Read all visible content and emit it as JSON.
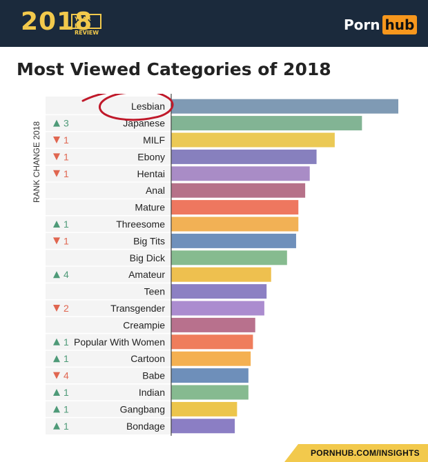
{
  "header": {
    "year": "2018",
    "year_in_review": "YEAR IN REVIEW",
    "brand_part1": "Porn",
    "brand_part2": "hub"
  },
  "footer": {
    "url": "PORNHUB.COM/INSIGHTS"
  },
  "colors": {
    "header_bg": "#1b2a3c",
    "gold": "#f2c94c",
    "brand_orange": "#f7971d",
    "up_arrow": "#4e9a78",
    "down_arrow": "#e06650",
    "annotation_circle": "#c0192a"
  },
  "chart_data": {
    "type": "bar",
    "orientation": "horizontal",
    "title": "Most Viewed Categories of 2018",
    "side_label": "RANK CHANGE 2018",
    "categories": [
      "Lesbian",
      "Japanese",
      "MILF",
      "Ebony",
      "Hentai",
      "Anal",
      "Mature",
      "Threesome",
      "Big Tits",
      "Big Dick",
      "Amateur",
      "Teen",
      "Transgender",
      "Creampie",
      "Popular With Women",
      "Cartoon",
      "Babe",
      "Indian",
      "Gangbang",
      "Bondage"
    ],
    "values": [
      100,
      84,
      72,
      64,
      61,
      59,
      56,
      56,
      55,
      51,
      44,
      42,
      41,
      37,
      36,
      35,
      34,
      34,
      29,
      28
    ],
    "rank_change": [
      {
        "dir": "",
        "n": ""
      },
      {
        "dir": "up",
        "n": "3"
      },
      {
        "dir": "down",
        "n": "1"
      },
      {
        "dir": "down",
        "n": "1"
      },
      {
        "dir": "down",
        "n": "1"
      },
      {
        "dir": "",
        "n": ""
      },
      {
        "dir": "",
        "n": ""
      },
      {
        "dir": "up",
        "n": "1"
      },
      {
        "dir": "down",
        "n": "1"
      },
      {
        "dir": "",
        "n": ""
      },
      {
        "dir": "up",
        "n": "4"
      },
      {
        "dir": "",
        "n": ""
      },
      {
        "dir": "down",
        "n": "2"
      },
      {
        "dir": "",
        "n": ""
      },
      {
        "dir": "up",
        "n": "1"
      },
      {
        "dir": "up",
        "n": "1"
      },
      {
        "dir": "down",
        "n": "4"
      },
      {
        "dir": "up",
        "n": "1"
      },
      {
        "dir": "up",
        "n": "1"
      },
      {
        "dir": "up",
        "n": "1"
      }
    ],
    "bar_colors": [
      "#7f9ab4",
      "#82b494",
      "#ebc955",
      "#8780be",
      "#a98cc6",
      "#b67189",
      "#ee775f",
      "#f2b155",
      "#6f90bb",
      "#86bb8f",
      "#eec04f",
      "#8c80c3",
      "#ab8ccf",
      "#b8718d",
      "#ef7d5c",
      "#f4b051",
      "#6e8fba",
      "#86ba90",
      "#ecc54c",
      "#8b7ec4"
    ],
    "highlighted_category": "Lesbian",
    "xlim": [
      0,
      100
    ],
    "grid": false,
    "legend": "none"
  }
}
